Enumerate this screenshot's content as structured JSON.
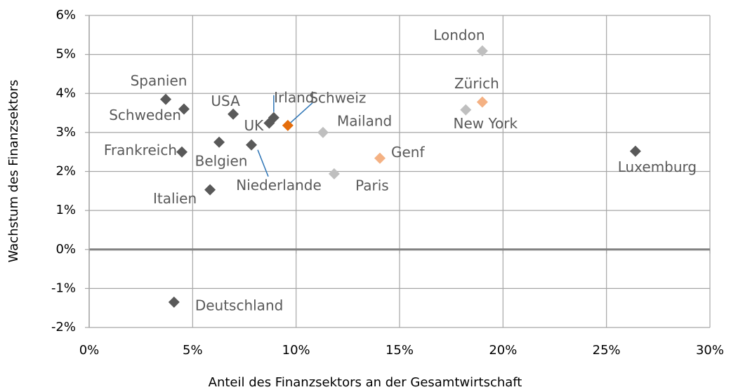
{
  "chart_data": {
    "type": "scatter",
    "x_label": "Anteil des Finanzsektors an der Gesamtwirtschaft",
    "y_label": "Wachstum des Finanzsektors",
    "xlim": [
      0,
      30
    ],
    "xticks": [
      {
        "value": 0,
        "label": "0%"
      },
      {
        "value": 5,
        "label": "5%"
      },
      {
        "value": 10,
        "label": "10%"
      },
      {
        "value": 15,
        "label": "15%"
      },
      {
        "value": 20,
        "label": "20%"
      },
      {
        "value": 25,
        "label": "25%"
      },
      {
        "value": 30,
        "label": "30%"
      }
    ],
    "ylim": [
      -2,
      6
    ],
    "yticks": [
      {
        "value": -2,
        "label": "-2%"
      },
      {
        "value": -1,
        "label": "-1%"
      },
      {
        "value": 0,
        "label": "0%"
      },
      {
        "value": 1,
        "label": "1%"
      },
      {
        "value": 2,
        "label": "2%"
      },
      {
        "value": 3,
        "label": "3%"
      },
      {
        "value": 4,
        "label": "4%"
      },
      {
        "value": 5,
        "label": "5%"
      },
      {
        "value": 6,
        "label": "6%"
      }
    ],
    "grid": true,
    "points": [
      {
        "name": "Spanien",
        "x": 3.7,
        "y": 3.85,
        "color": "#595959"
      },
      {
        "name": "Schweden",
        "x": 4.58,
        "y": 3.6,
        "color": "#595959"
      },
      {
        "name": "USA",
        "x": 6.96,
        "y": 3.47,
        "color": "#595959"
      },
      {
        "name": "Irland",
        "x": 8.92,
        "y": 3.38,
        "color": "#595959"
      },
      {
        "name": "UK",
        "x": 8.7,
        "y": 3.24,
        "color": "#595959"
      },
      {
        "name": "Schweiz",
        "x": 9.6,
        "y": 3.18,
        "color": "#e46c0a"
      },
      {
        "name": "Frankreich",
        "x": 4.48,
        "y": 2.5,
        "color": "#595959"
      },
      {
        "name": "Belgien",
        "x": 6.28,
        "y": 2.75,
        "color": "#595959"
      },
      {
        "name": "Niederlande",
        "x": 7.84,
        "y": 2.68,
        "color": "#595959"
      },
      {
        "name": "Italien",
        "x": 5.84,
        "y": 1.53,
        "color": "#595959"
      },
      {
        "name": "Deutschland",
        "x": 4.1,
        "y": -1.35,
        "color": "#595959"
      },
      {
        "name": "Luxemburg",
        "x": 26.4,
        "y": 2.52,
        "color": "#595959"
      },
      {
        "name": "London",
        "x": 19.0,
        "y": 5.09,
        "color": "#bfbfbf"
      },
      {
        "name": "Mailand",
        "x": 11.3,
        "y": 3.0,
        "color": "#bfbfbf"
      },
      {
        "name": "Paris",
        "x": 11.84,
        "y": 1.94,
        "color": "#bfbfbf"
      },
      {
        "name": "New York",
        "x": 18.2,
        "y": 3.58,
        "color": "#bfbfbf"
      },
      {
        "name": "Zürich",
        "x": 19.0,
        "y": 3.78,
        "color": "#f4b183"
      },
      {
        "name": "Genf",
        "x": 14.05,
        "y": 2.34,
        "color": "#f4b183"
      }
    ]
  }
}
